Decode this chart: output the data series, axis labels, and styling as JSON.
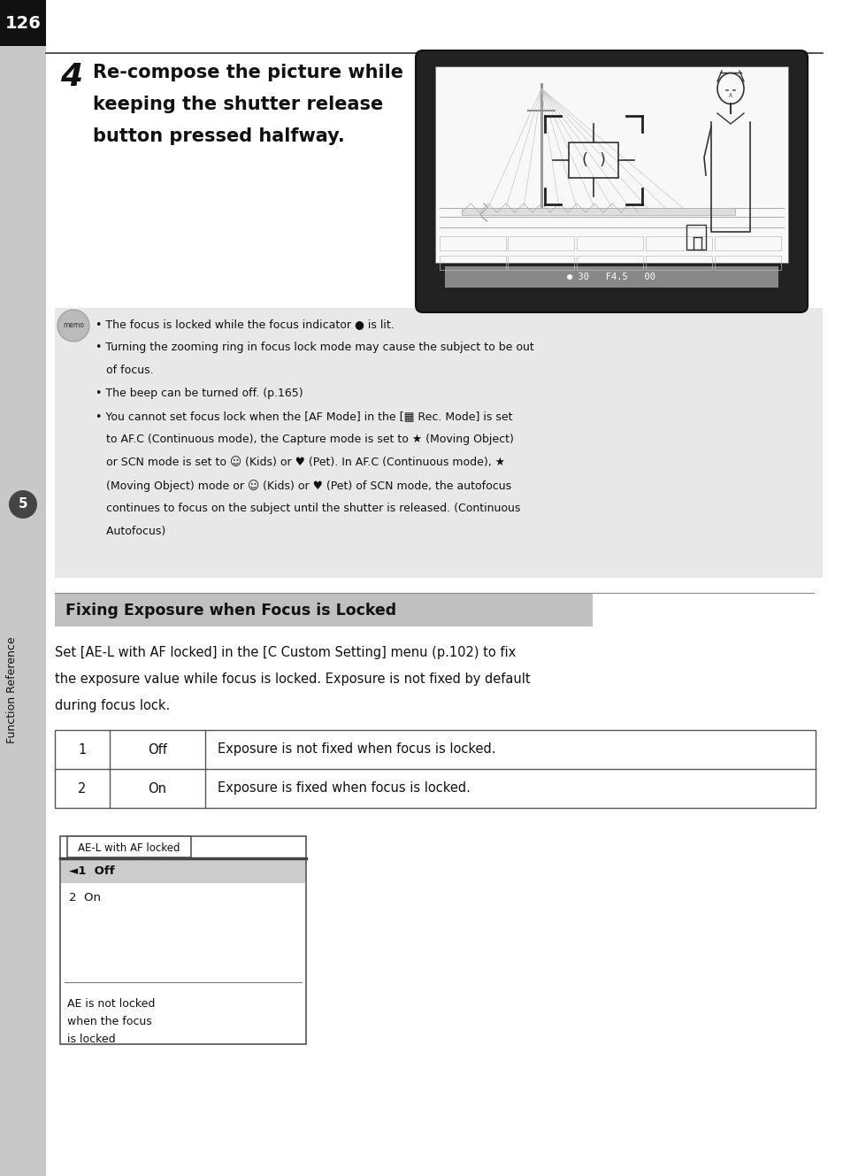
{
  "page_number": "126",
  "bg_color": "#ffffff",
  "sidebar_gray": "#c8c8c8",
  "page_num_bg": "#111111",
  "step_number": "4",
  "step_text_lines": [
    "Re-compose the picture while",
    "keeping the shutter release",
    "button pressed halfway."
  ],
  "memo_bg": "#e8e8e8",
  "memo_lines": [
    "• The focus is locked while the focus indicator ● is lit.",
    "• Turning the zooming ring in focus lock mode may cause the subject to be out",
    "   of focus.",
    "• The beep can be turned off. (p.165)",
    "• You cannot set focus lock when the [AF Mode] in the [▦ Rec. Mode] is set",
    "   to AF.C (Continuous mode), the Capture mode is set to ★ (Moving Object)",
    "   or SCN mode is set to ☺ (Kids) or ♥ (Pet). In AF.C (Continuous mode), ★",
    "   (Moving Object) mode or ☺ (Kids) or ♥ (Pet) of SCN mode, the autofocus",
    "   continues to focus on the subject until the shutter is released. (Continuous",
    "   Autofocus)"
  ],
  "section_title": "Fixing Exposure when Focus is Locked",
  "section_title_bg": "#c0c0c0",
  "section_body_lines": [
    "Set [AE-L with AF locked] in the [C Custom Setting] menu (p.102) to fix",
    "the exposure value while focus is locked. Exposure is not fixed by default",
    "during focus lock."
  ],
  "table_rows": [
    {
      "num": "1",
      "setting": "Off",
      "description": "Exposure is not fixed when focus is locked."
    },
    {
      "num": "2",
      "setting": "On",
      "description": "Exposure is fixed when focus is locked."
    }
  ],
  "ui_box_title": "AE-L with AF locked",
  "ui_row1": "◄1  Off",
  "ui_row2": "2  On",
  "ui_caption_lines": [
    "AE is not locked",
    "when the focus",
    "is locked"
  ],
  "sidebar_label": "Function Reference",
  "sidebar_num": "5",
  "cam_outer_color": "#222222",
  "cam_screen_color": "#f8f8f8",
  "cam_status_color": "#888888",
  "status_text": "● 30   F4.5   00"
}
